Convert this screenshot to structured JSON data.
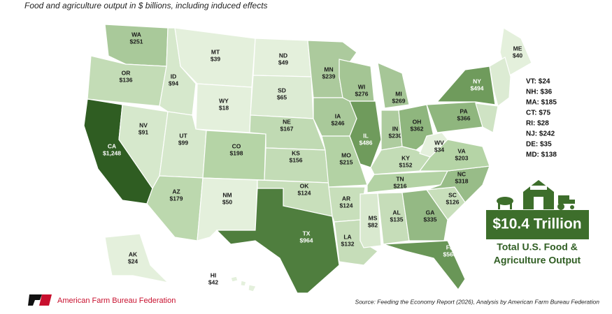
{
  "subtitle": "Food and agriculture output in $ billions, including induced effects",
  "states": [
    {
      "abbr": "WA",
      "value": "$251",
      "color": "#a9c99a"
    },
    {
      "abbr": "OR",
      "value": "$136",
      "color": "#c3dcb6"
    },
    {
      "abbr": "CA",
      "value": "$1,248",
      "color": "#2f5d22"
    },
    {
      "abbr": "NV",
      "value": "$91",
      "color": "#d6e8cc"
    },
    {
      "abbr": "ID",
      "value": "$94",
      "color": "#d6e8cc"
    },
    {
      "abbr": "MT",
      "value": "$39",
      "color": "#e4f0dc"
    },
    {
      "abbr": "WY",
      "value": "$18",
      "color": "#e4f0dc"
    },
    {
      "abbr": "UT",
      "value": "$99",
      "color": "#d6e8cc"
    },
    {
      "abbr": "AZ",
      "value": "$179",
      "color": "#bcd8ae"
    },
    {
      "abbr": "CO",
      "value": "$198",
      "color": "#b5d4a6"
    },
    {
      "abbr": "NM",
      "value": "$50",
      "color": "#e4f0dc"
    },
    {
      "abbr": "ND",
      "value": "$49",
      "color": "#e4f0dc"
    },
    {
      "abbr": "SD",
      "value": "$65",
      "color": "#dcebd3"
    },
    {
      "abbr": "NE",
      "value": "$167",
      "color": "#c0dab3"
    },
    {
      "abbr": "KS",
      "value": "$156",
      "color": "#c3dcb6"
    },
    {
      "abbr": "OK",
      "value": "$124",
      "color": "#c8dfbb"
    },
    {
      "abbr": "TX",
      "value": "$964",
      "color": "#4f7e3e"
    },
    {
      "abbr": "MN",
      "value": "$239",
      "color": "#acca9d"
    },
    {
      "abbr": "IA",
      "value": "$246",
      "color": "#a9c99a"
    },
    {
      "abbr": "MO",
      "value": "$215",
      "color": "#b3d2a4"
    },
    {
      "abbr": "AR",
      "value": "$124",
      "color": "#c8dfbb"
    },
    {
      "abbr": "LA",
      "value": "$132",
      "color": "#c6ddb9"
    },
    {
      "abbr": "WI",
      "value": "$276",
      "color": "#a4c594"
    },
    {
      "abbr": "IL",
      "value": "$486",
      "color": "#6f9b5c"
    },
    {
      "abbr": "MI",
      "value": "$269",
      "color": "#a6c697"
    },
    {
      "abbr": "IN",
      "value": "$230",
      "color": "#aecc9f"
    },
    {
      "abbr": "OH",
      "value": "$362",
      "color": "#8fb67e"
    },
    {
      "abbr": "KY",
      "value": "$152",
      "color": "#c3dcb6"
    },
    {
      "abbr": "TN",
      "value": "$216",
      "color": "#b3d2a4"
    },
    {
      "abbr": "MS",
      "value": "$82",
      "color": "#d9e9cf"
    },
    {
      "abbr": "AL",
      "value": "$135",
      "color": "#c6ddb9"
    },
    {
      "abbr": "GA",
      "value": "$335",
      "color": "#94b984"
    },
    {
      "abbr": "FL",
      "value": "$560",
      "color": "#699657"
    },
    {
      "abbr": "SC",
      "value": "$126",
      "color": "#c8dfbb"
    },
    {
      "abbr": "NC",
      "value": "$318",
      "color": "#98bc88"
    },
    {
      "abbr": "VA",
      "value": "$203",
      "color": "#b5d4a6"
    },
    {
      "abbr": "WV",
      "value": "$34",
      "color": "#e4f0dc"
    },
    {
      "abbr": "PA",
      "value": "$366",
      "color": "#8fb67e"
    },
    {
      "abbr": "NY",
      "value": "$494",
      "color": "#6f9b5c"
    },
    {
      "abbr": "ME",
      "value": "$40",
      "color": "#e4f0dc"
    },
    {
      "abbr": "AK",
      "value": "$24",
      "color": "#e4f0dc"
    },
    {
      "abbr": "HI",
      "value": "$42",
      "color": "#e4f0dc"
    }
  ],
  "small_states": [
    "VT: $24",
    "NH: $36",
    "MA: $185",
    "CT: $75",
    "RI: $28",
    "NJ: $242",
    "DE: $35",
    "MD: $138"
  ],
  "callout": {
    "total": "$10.4 Trillion",
    "caption": [
      "Total U.S. Food &",
      "Agriculture Output"
    ]
  },
  "footer": {
    "org": "American Farm Bureau Federation",
    "source": "Source: Feeding the Economy Report (2026), Analysis by American Farm Bureau Federation"
  }
}
